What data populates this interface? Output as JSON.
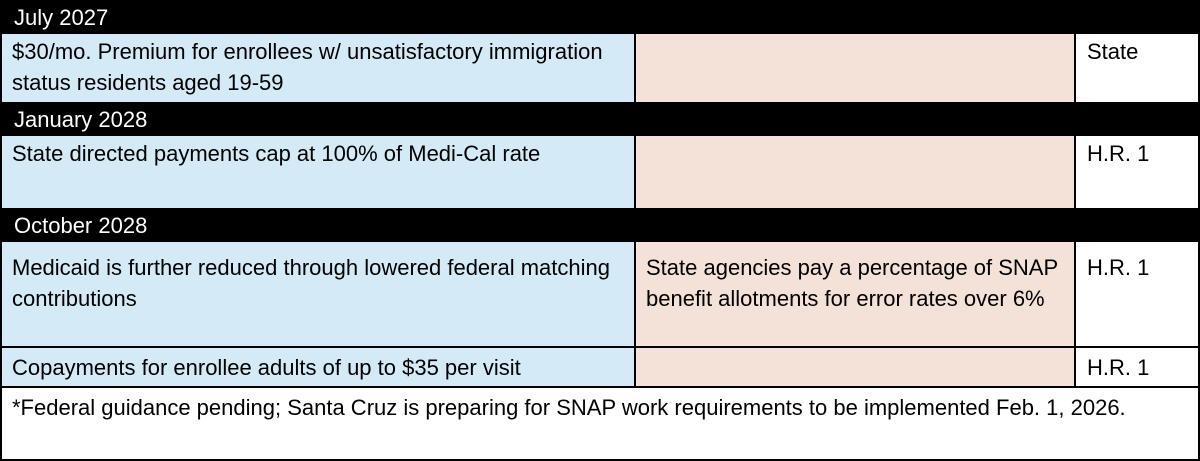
{
  "sections": [
    {
      "heading": "July 2027",
      "rows": [
        {
          "description": "$30/mo. Premium for enrollees w/ unsatisfactory immigration status residents aged 19-59",
          "snap": "",
          "source": "State"
        }
      ]
    },
    {
      "heading": "January 2028",
      "rows": [
        {
          "description": "State directed payments cap at 100% of Medi-Cal rate",
          "snap": "",
          "source": "H.R. 1"
        }
      ]
    },
    {
      "heading": "October 2028",
      "rows": [
        {
          "description": "Medicaid is further reduced through lowered federal matching contributions",
          "snap": "State agencies pay a percentage of SNAP benefit allotments for error rates over 6%",
          "source": "H.R. 1"
        },
        {
          "description": "Copayments for enrollee adults of up to $35 per visit",
          "snap": "",
          "source": "H.R. 1"
        }
      ]
    }
  ],
  "footnote": "*Federal guidance pending; Santa Cruz is preparing for SNAP work requirements to be implemented Feb. 1, 2026."
}
